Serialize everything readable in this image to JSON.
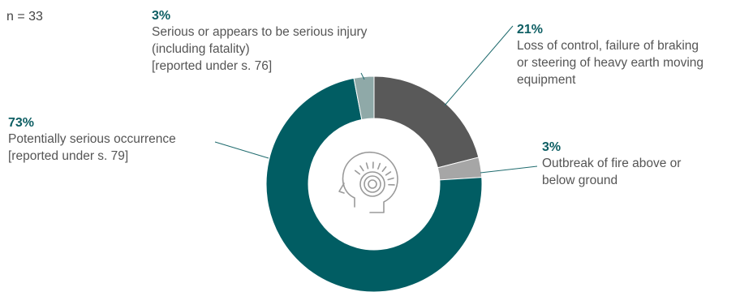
{
  "chart_data": {
    "type": "pie",
    "n_label": "n = 33",
    "slices": [
      {
        "pct_label": "21%",
        "value": 21,
        "color": "#595959",
        "lines": [
          "Loss of control, failure of braking",
          "or steering of heavy earth moving",
          "equipment"
        ]
      },
      {
        "pct_label": "3%",
        "value": 3,
        "color": "#a6a6a6",
        "lines": [
          "Outbreak of fire above or",
          "below ground"
        ]
      },
      {
        "pct_label": "73%",
        "value": 73,
        "color": "#015d63",
        "lines": [
          "Potentially serious occurrence",
          "[reported under s. 79]"
        ]
      },
      {
        "pct_label": "3%",
        "value": 3,
        "color": "#8fa9a8",
        "lines": [
          "Serious or appears to be serious injury",
          "(including fatality)",
          "[reported under s. 76]"
        ]
      }
    ],
    "center_icon": "head-brain-icon"
  }
}
